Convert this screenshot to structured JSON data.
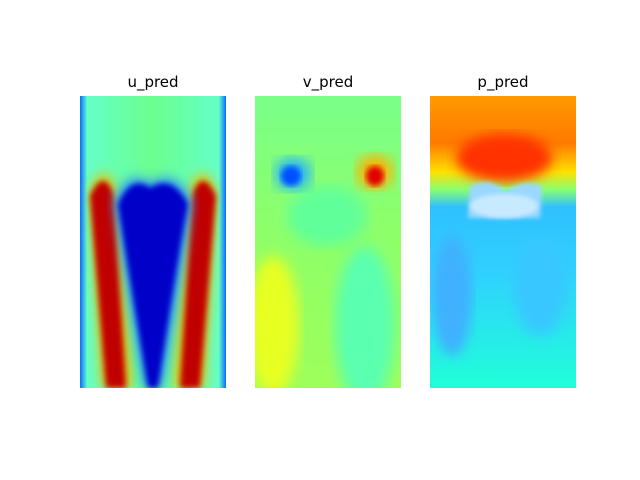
{
  "chart_data": [
    {
      "type": "heatmap",
      "title": "u_pred",
      "colormap": "jet",
      "axes_visible": false,
      "field": "u",
      "pattern": "near-wall jets with a recirculation core",
      "value_range": [
        0,
        1
      ]
    },
    {
      "type": "heatmap",
      "title": "v_pred",
      "colormap": "jet",
      "axes_visible": false,
      "field": "v",
      "pattern": "opposite-sign vortices near the top, nearly uniform elsewhere",
      "value_range": [
        0,
        1
      ]
    },
    {
      "type": "heatmap",
      "title": "p_pred",
      "colormap": "jet",
      "axes_visible": false,
      "field": "p",
      "pattern": "high pressure in the upper band, low pressure below",
      "value_range": [
        0,
        1
      ]
    }
  ]
}
